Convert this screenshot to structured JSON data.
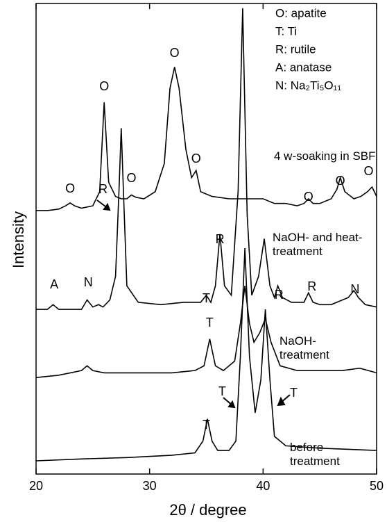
{
  "chart_data": {
    "type": "line",
    "xlabel": "2θ / degree",
    "ylabel": "Intensity",
    "xlim": [
      20,
      50
    ],
    "xticks": [
      20,
      30,
      40,
      50
    ],
    "ylim": [
      0,
      100
    ],
    "legend": [
      "O: apatite",
      "T: Ti",
      "R: rutile",
      "A: anatase",
      "N: Na₂Ti₅O₁₁"
    ],
    "series": [
      {
        "name": "4 w-soaking in SBF",
        "color": "#000000",
        "x": [
          20,
          21,
          22,
          22.6,
          23,
          23.4,
          24,
          25,
          25.6,
          26,
          26.4,
          27,
          27.5,
          28,
          28.4,
          28.8,
          29.5,
          30.5,
          31.3,
          31.8,
          32.2,
          32.6,
          33.2,
          33.7,
          34.1,
          34.5,
          35.5,
          37,
          38.5,
          40,
          41,
          42,
          43,
          43.6,
          44,
          44.4,
          45,
          46,
          46.5,
          46.8,
          47.2,
          48,
          48.6,
          49.2,
          49.6,
          50
        ],
        "values": [
          56,
          56,
          56.3,
          57,
          57.6,
          57,
          56.5,
          57,
          60,
          79,
          62,
          59,
          58.5,
          58.5,
          59.3,
          58.8,
          58.5,
          60,
          66,
          82,
          86.5,
          82,
          69,
          63,
          64.5,
          60,
          59,
          58.5,
          58.5,
          58.5,
          57.5,
          57.5,
          57,
          57.5,
          58.5,
          57.5,
          57.5,
          58.5,
          60.5,
          63,
          60,
          58.5,
          59,
          60,
          61,
          59
        ],
        "peaks": [
          {
            "label": "O",
            "x": 23
          },
          {
            "label": "O",
            "x": 26
          },
          {
            "label": "O",
            "x": 28.4
          },
          {
            "label": "O",
            "x": 32.2
          },
          {
            "label": "O",
            "x": 34.1
          },
          {
            "label": "O",
            "x": 44
          },
          {
            "label": "O",
            "x": 46.8
          },
          {
            "label": "O",
            "x": 49.3
          }
        ]
      },
      {
        "name": "NaOH- and heat-treatment",
        "color": "#000000",
        "x": [
          20,
          21,
          21.5,
          22,
          23,
          24,
          24.5,
          25,
          25.5,
          25.9,
          26.5,
          27,
          27.3,
          27.5,
          27.7,
          28,
          29,
          31,
          33,
          34.5,
          35,
          35.4,
          35.8,
          36.2,
          36.6,
          37.2,
          37.8,
          38.2,
          38.6,
          39,
          39.6,
          40.1,
          40.6,
          41,
          41.3,
          41.7,
          42.5,
          43.6,
          44,
          44.4,
          45,
          46,
          47.5,
          48,
          48.4,
          49,
          50
        ],
        "values": [
          35,
          35,
          36,
          35,
          35,
          35,
          37,
          35.5,
          36,
          35.5,
          37,
          42,
          60,
          73.5,
          60,
          40,
          36.5,
          36,
          36.5,
          36.5,
          38,
          36.5,
          40,
          51,
          40,
          38,
          60,
          99,
          55,
          38,
          42,
          50,
          40,
          37.5,
          40,
          37.5,
          36.5,
          36.5,
          38.5,
          36.5,
          36,
          36,
          37.5,
          39,
          37.5,
          36,
          35.5
        ],
        "peaks": [
          {
            "label": "A",
            "x": 21.6
          },
          {
            "label": "N",
            "x": 24.6
          },
          {
            "label": "R",
            "x": 25.9
          },
          {
            "label": "T",
            "x": 35
          },
          {
            "label": "R",
            "x": 36.2
          },
          {
            "label": "R",
            "x": 41.4
          },
          {
            "label": "R",
            "x": 44.3
          },
          {
            "label": "N",
            "x": 48.1
          }
        ]
      },
      {
        "name": "NaOH- treatment",
        "color": "#000000",
        "x": [
          20,
          22,
          24,
          24.5,
          25,
          26,
          28,
          30,
          32,
          34,
          34.8,
          35.3,
          35.8,
          36.5,
          37.5,
          38,
          38.4,
          38.8,
          39.2,
          39.7,
          40.2,
          40.7,
          41.5,
          43,
          45,
          47,
          48.5,
          50
        ],
        "values": [
          20.5,
          21,
          22,
          23,
          22,
          21.5,
          21.5,
          21.5,
          21.5,
          22,
          23,
          28.7,
          23,
          22,
          24,
          32,
          40,
          32,
          28,
          30,
          33,
          28,
          23,
          22,
          22,
          22,
          22.5,
          21.5
        ],
        "peaks": [
          {
            "label": "T",
            "x": 35.3
          }
        ]
      },
      {
        "name": "before treatment",
        "color": "#000000",
        "x": [
          20,
          24,
          28,
          32,
          34,
          34.7,
          35.1,
          35.5,
          36,
          37,
          37.6,
          38,
          38.4,
          38.8,
          39.3,
          39.8,
          40.2,
          40.6,
          41,
          42,
          45,
          50
        ],
        "values": [
          2.8,
          3.2,
          3.5,
          4,
          4.5,
          7,
          11.7,
          7,
          5,
          5,
          7,
          25,
          48,
          25,
          13,
          20,
          35,
          20,
          8,
          6,
          5.5,
          5
        ],
        "peaks": [
          {
            "label": "T",
            "x": 35
          },
          {
            "label": "T",
            "x": 36.4
          },
          {
            "label": "T",
            "x": 42.7
          }
        ]
      }
    ]
  }
}
